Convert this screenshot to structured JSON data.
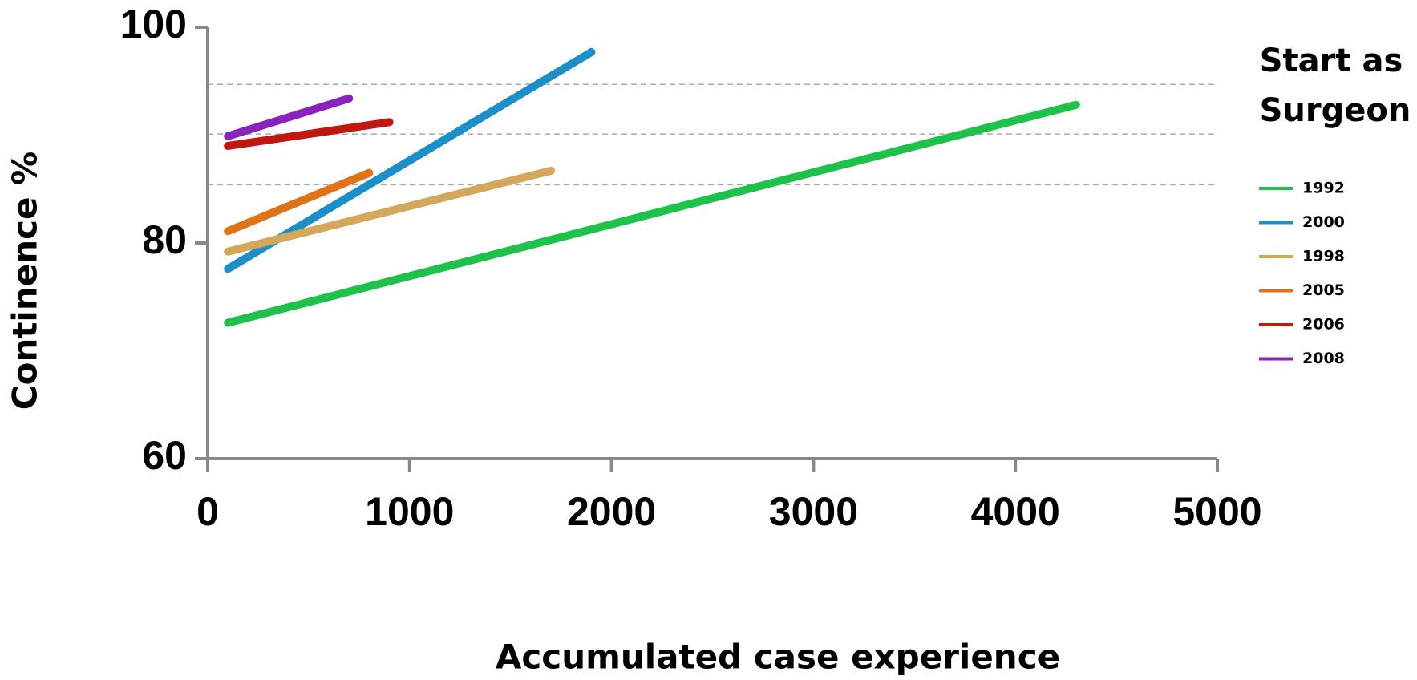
{
  "chart_data": {
    "type": "line",
    "x_label": "Accumulated case experience",
    "y_label": "Continence %",
    "legend_title": [
      "Start as",
      "Surgeon"
    ],
    "xlim": [
      0,
      5000
    ],
    "xticks": [
      0,
      1000,
      2000,
      3000,
      4000,
      5000
    ],
    "ylim": [
      60,
      100
    ],
    "yticks": [
      60,
      80,
      100
    ],
    "hlines": [
      94.7,
      90.1,
      85.4
    ],
    "series": [
      {
        "name": "1992",
        "color": "#1ec24b",
        "x": [
          100,
          4300
        ],
        "values": [
          72.6,
          92.8
        ]
      },
      {
        "name": "2000",
        "color": "#1a8fc8",
        "x": [
          100,
          1900
        ],
        "values": [
          77.6,
          97.7
        ]
      },
      {
        "name": "1998",
        "color": "#d4a85a",
        "x": [
          100,
          1700
        ],
        "values": [
          79.2,
          86.7
        ]
      },
      {
        "name": "2005",
        "color": "#de7417",
        "x": [
          100,
          800
        ],
        "values": [
          81.1,
          86.5
        ]
      },
      {
        "name": "2006",
        "color": "#c0170f",
        "x": [
          100,
          900
        ],
        "values": [
          89.0,
          91.2
        ]
      },
      {
        "name": "2008",
        "color": "#8a22be",
        "x": [
          100,
          700
        ],
        "values": [
          89.9,
          93.4
        ]
      }
    ]
  }
}
